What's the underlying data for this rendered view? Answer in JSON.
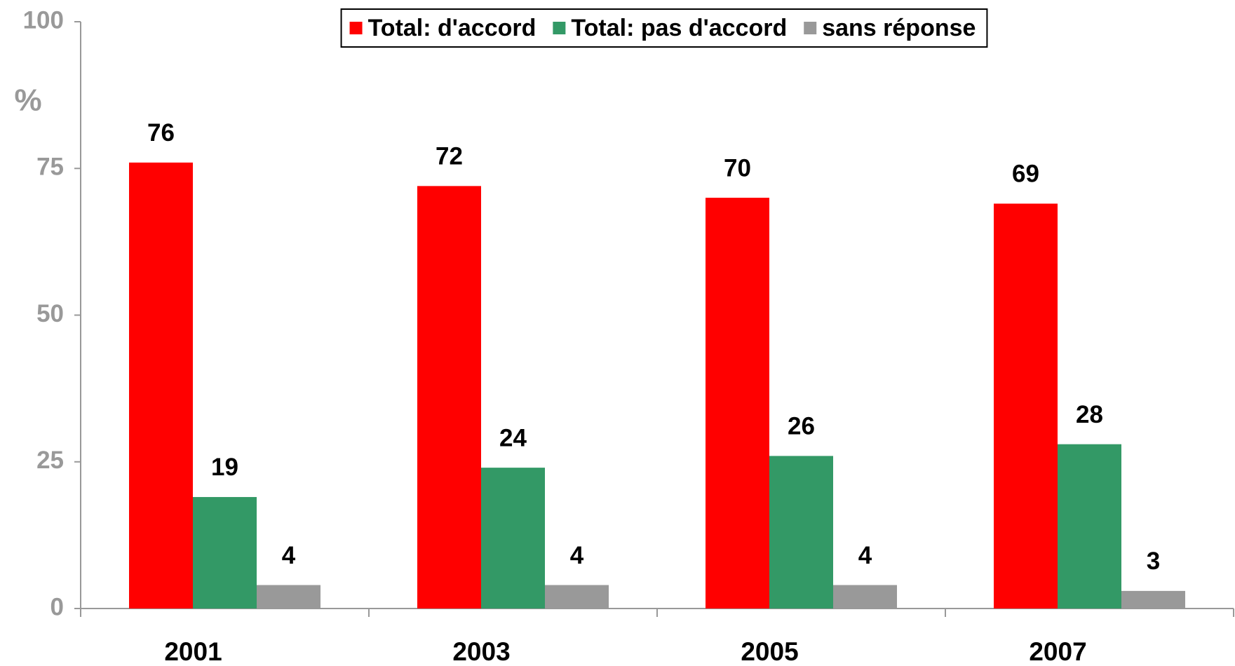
{
  "chart_data": {
    "type": "bar",
    "ylabel": "%",
    "categories": [
      "2001",
      "2003",
      "2005",
      "2007"
    ],
    "series": [
      {
        "name": "Total: d'accord",
        "color": "#ff0000",
        "values": [
          76,
          72,
          70,
          69
        ]
      },
      {
        "name": "Total: pas d'accord",
        "color": "#339966",
        "values": [
          19,
          24,
          26,
          28
        ]
      },
      {
        "name": "sans réponse",
        "color": "#999999",
        "values": [
          4,
          4,
          4,
          3
        ]
      }
    ],
    "ylim": [
      0,
      100
    ],
    "yticks": [
      0,
      25,
      50,
      75,
      100
    ],
    "legend": "top",
    "grid": false
  }
}
